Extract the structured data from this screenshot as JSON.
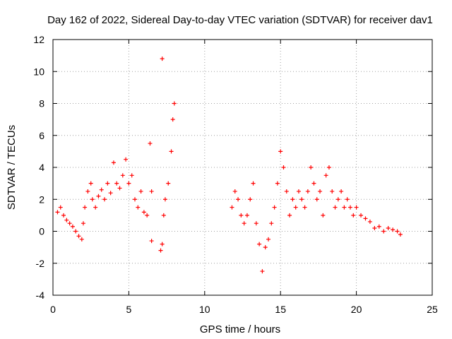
{
  "chart_data": {
    "type": "scatter",
    "title": "Day 162 of 2022, Sidereal Day-to-day VTEC variation (SDTVAR) for receiver dav1",
    "xlabel": "GPS time / hours",
    "ylabel": "SDTVAR / TECUs",
    "xlim": [
      0,
      25
    ],
    "ylim": [
      -4,
      12
    ],
    "xticks": [
      0,
      5,
      10,
      15,
      20,
      25
    ],
    "yticks": [
      -4,
      -2,
      0,
      2,
      4,
      6,
      8,
      10,
      12
    ],
    "grid": true,
    "marker": "+",
    "series": [
      {
        "name": "dav1",
        "color": "#ff0000",
        "x": [
          0.3,
          0.5,
          0.7,
          0.9,
          1.1,
          1.3,
          1.5,
          1.7,
          1.9,
          2.0,
          2.1,
          2.3,
          2.5,
          2.6,
          2.8,
          3.0,
          3.2,
          3.4,
          3.6,
          3.8,
          4.0,
          4.2,
          4.4,
          4.6,
          4.8,
          5.0,
          5.2,
          5.4,
          5.6,
          5.8,
          6.0,
          6.2,
          6.4,
          6.5,
          6.5,
          7.1,
          7.2,
          7.2,
          7.3,
          7.4,
          7.6,
          7.8,
          7.9,
          8.0,
          11.8,
          12.0,
          12.2,
          12.4,
          12.6,
          12.8,
          13.0,
          13.2,
          13.4,
          13.6,
          13.8,
          14.0,
          14.2,
          14.4,
          14.6,
          14.8,
          15.0,
          15.2,
          15.4,
          15.6,
          15.8,
          16.0,
          16.2,
          16.4,
          16.6,
          16.8,
          17.0,
          17.2,
          17.4,
          17.6,
          17.8,
          18.0,
          18.2,
          18.4,
          18.6,
          18.8,
          19.0,
          19.2,
          19.4,
          19.6,
          19.8,
          20.0,
          20.3,
          20.6,
          20.9,
          21.2,
          21.5,
          21.8,
          22.1,
          22.4,
          22.7,
          22.9
        ],
        "y": [
          1.2,
          1.5,
          1.0,
          0.7,
          0.5,
          0.3,
          0.0,
          -0.3,
          -0.5,
          0.5,
          1.5,
          2.5,
          3.0,
          2.0,
          1.5,
          2.2,
          2.6,
          2.0,
          3.0,
          2.4,
          4.3,
          3.0,
          2.7,
          3.5,
          4.5,
          3.0,
          3.5,
          2.0,
          1.5,
          2.5,
          1.2,
          1.0,
          5.5,
          2.5,
          -0.6,
          -1.2,
          10.8,
          -0.8,
          1.0,
          2.0,
          3.0,
          5.0,
          7.0,
          8.0,
          1.5,
          2.5,
          2.0,
          1.0,
          0.5,
          1.0,
          2.0,
          3.0,
          0.5,
          -0.8,
          -2.5,
          -1.0,
          -0.5,
          0.5,
          1.5,
          3.0,
          5.0,
          4.0,
          2.5,
          1.0,
          2.0,
          1.5,
          2.5,
          2.0,
          1.5,
          2.5,
          4.0,
          3.0,
          2.0,
          2.5,
          1.0,
          3.5,
          4.0,
          2.5,
          1.5,
          2.0,
          2.5,
          1.5,
          2.0,
          1.5,
          1.0,
          1.5,
          1.0,
          0.8,
          0.6,
          0.2,
          0.3,
          0.0,
          0.2,
          0.1,
          0.0,
          -0.2
        ]
      }
    ]
  }
}
